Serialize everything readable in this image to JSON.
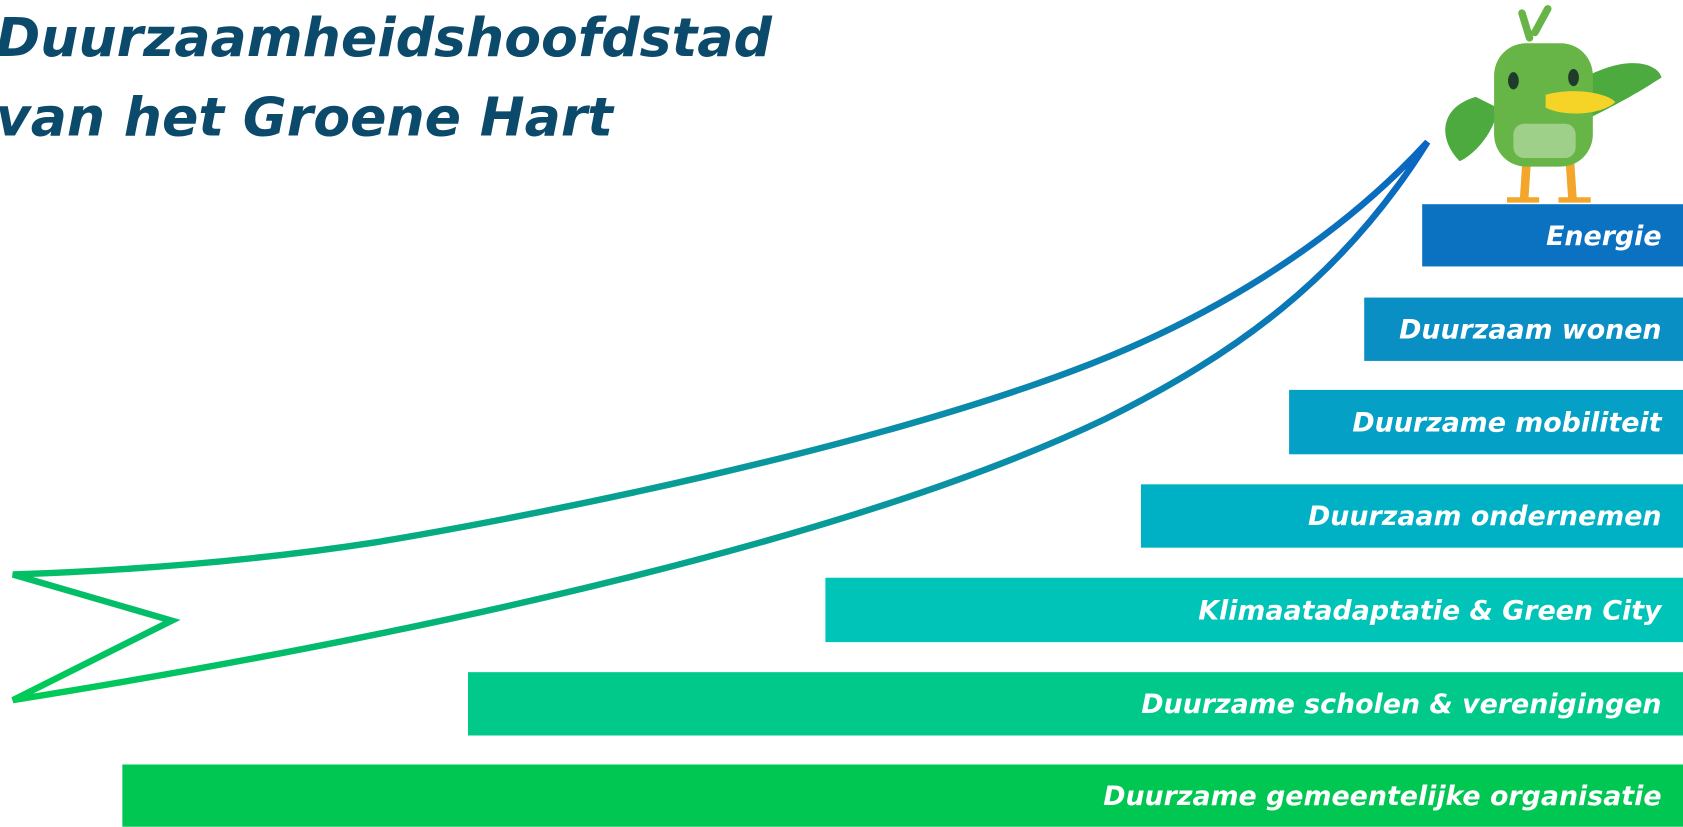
{
  "title": {
    "lines": [
      "Duurzaamheidshoofdstad",
      "van het Groene Hart"
    ]
  },
  "steps": [
    "Energie",
    "Duurzaam wonen",
    "Duurzame mobiliteit",
    "Duurzaam ondernemen",
    "Klimaatadaptatie & Green City",
    "Duurzame scholen & verenigingen",
    "Duurzame gemeentelijke organisatie"
  ]
}
